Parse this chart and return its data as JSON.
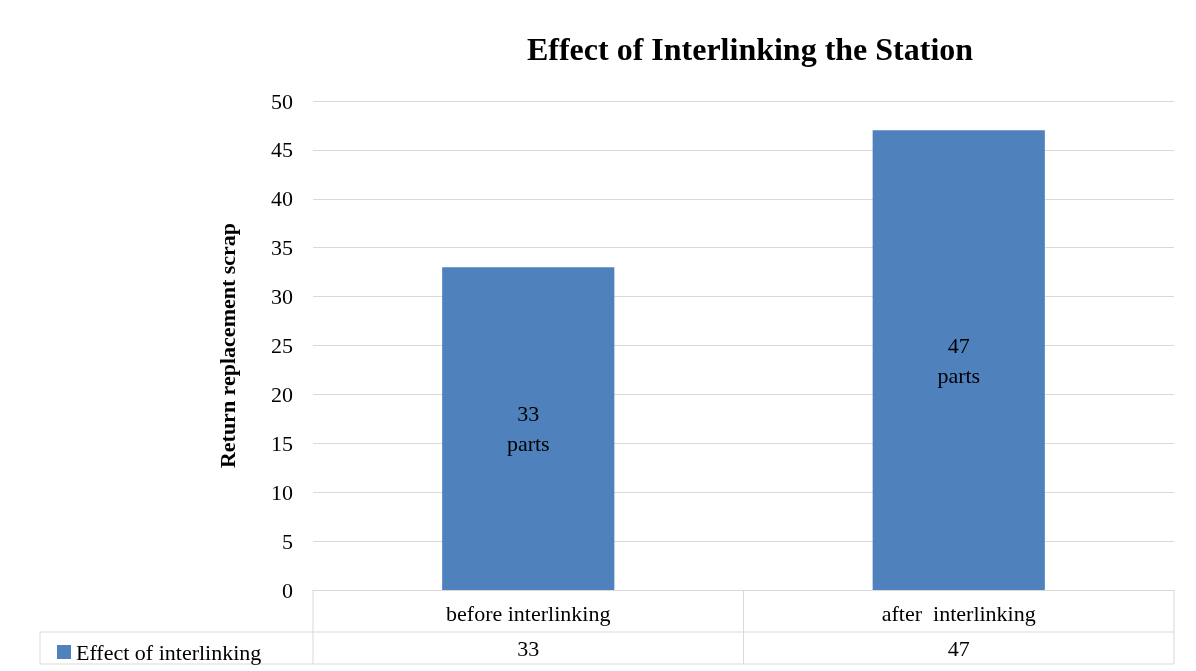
{
  "chart_data": {
    "type": "bar",
    "title": "Effect of Interlinking the Station",
    "ylabel": "Return replacement scrap",
    "categories": [
      "before interlinking",
      "after  interlinking"
    ],
    "series": [
      {
        "name": "Effect of interlinking",
        "color": "#4f81bd",
        "values": [
          33,
          47
        ],
        "value_labels": [
          "33\nparts",
          "47\nparts"
        ]
      }
    ],
    "ylim": [
      0,
      50
    ],
    "yticks": [
      0,
      5,
      10,
      15,
      20,
      25,
      30,
      35,
      40,
      45,
      50
    ],
    "grid": "y",
    "legend": "bottom left",
    "annotations": [
      "33",
      "47"
    ]
  }
}
